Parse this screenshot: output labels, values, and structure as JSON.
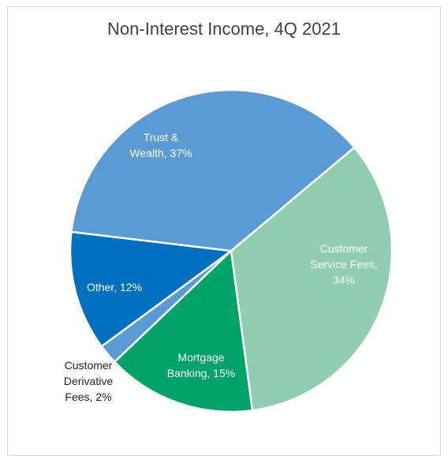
{
  "chart_data": {
    "type": "pie",
    "title": "Non-Interest Income, 4Q 2021",
    "slices": [
      {
        "label": "Customer Service Fees",
        "value": 34,
        "color": "#8fcfb0",
        "label_lines": [
          "Customer",
          "Service Fees,",
          "34%"
        ],
        "label_color": "#ffffff"
      },
      {
        "label": "Mortgage Banking",
        "value": 15,
        "color": "#00a36a",
        "label_lines": [
          "Mortgage",
          "Banking, 15%"
        ],
        "label_color": "#ffffff"
      },
      {
        "label": "Customer Derivative Fees",
        "value": 2,
        "color": "#5b9bd5",
        "label_lines": [
          "Customer",
          "Derivative",
          "Fees, 2%"
        ],
        "label_color": "#262626"
      },
      {
        "label": "Other",
        "value": 12,
        "color": "#0070c0",
        "label_lines": [
          "Other, 12%"
        ],
        "label_color": "#ffffff"
      },
      {
        "label": "Trust & Wealth",
        "value": 37,
        "color": "#5b9bd5",
        "label_lines": [
          "Trust &",
          "Wealth, 37%"
        ],
        "label_color": "#ffffff"
      }
    ]
  }
}
